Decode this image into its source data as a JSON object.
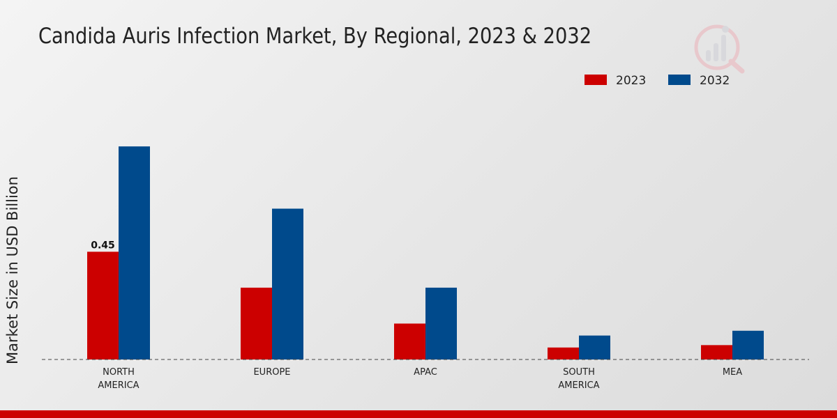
{
  "colors": {
    "series_2023": "#cc0000",
    "series_2032": "#004a8c",
    "footer_bar": "#cc0000",
    "axis": "#444444",
    "text": "#222222"
  },
  "logo_icon": "market-research-logo-icon",
  "chart_data": {
    "type": "bar",
    "title": "Candida Auris Infection Market, By Regional, 2023 & 2032",
    "xlabel": "",
    "ylabel": "Market Size in USD Billion",
    "categories": [
      {
        "lines": [
          "NORTH",
          "AMERICA"
        ]
      },
      {
        "lines": [
          "EUROPE"
        ]
      },
      {
        "lines": [
          "APAC"
        ]
      },
      {
        "lines": [
          "SOUTH",
          "AMERICA"
        ]
      },
      {
        "lines": [
          "MEA"
        ]
      }
    ],
    "series": [
      {
        "name": "2023",
        "values": [
          0.45,
          0.3,
          0.15,
          0.05,
          0.06
        ]
      },
      {
        "name": "2032",
        "values": [
          0.89,
          0.63,
          0.3,
          0.1,
          0.12
        ]
      }
    ],
    "data_labels": [
      {
        "series": 0,
        "index": 0,
        "text": "0.45"
      }
    ],
    "ylim": [
      0,
      1.1
    ],
    "grid": false,
    "legend_position": "top-right"
  }
}
